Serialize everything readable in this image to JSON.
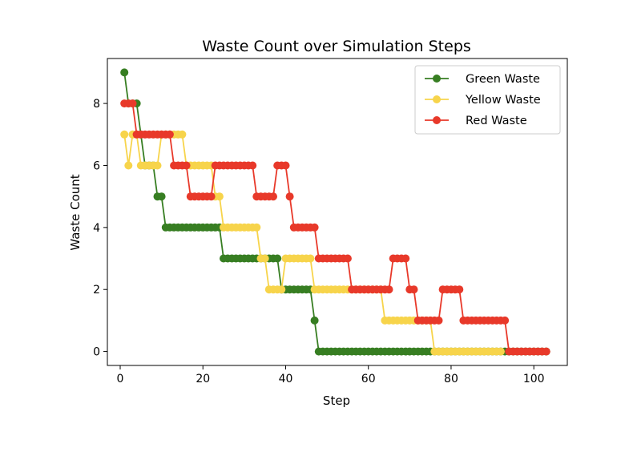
{
  "chart_data": {
    "type": "line",
    "title": "Waste Count over Simulation Steps",
    "xlabel": "Step",
    "ylabel": "Waste Count",
    "xlim": [
      -3.1,
      108.1
    ],
    "ylim": [
      -0.45,
      9.45
    ],
    "xticks": [
      0,
      20,
      40,
      60,
      80,
      100
    ],
    "yticks": [
      0,
      2,
      4,
      6,
      8
    ],
    "legend_position": "upper right",
    "grid": false,
    "series": [
      {
        "name": "Green Waste",
        "color": "#377e22",
        "segments": [
          [
            1,
            1,
            9
          ],
          [
            2,
            4,
            8
          ],
          [
            5,
            5,
            7
          ],
          [
            6,
            8,
            6
          ],
          [
            9,
            10,
            5
          ],
          [
            11,
            24,
            4
          ],
          [
            25,
            38,
            3
          ],
          [
            39,
            46,
            2
          ],
          [
            47,
            47,
            1
          ],
          [
            48,
            103,
            0
          ]
        ]
      },
      {
        "name": "Yellow Waste",
        "color": "#f7d44b",
        "segments": [
          [
            1,
            1,
            7
          ],
          [
            2,
            2,
            6
          ],
          [
            3,
            4,
            7
          ],
          [
            5,
            9,
            6
          ],
          [
            10,
            15,
            7
          ],
          [
            16,
            22,
            6
          ],
          [
            23,
            24,
            5
          ],
          [
            25,
            33,
            4
          ],
          [
            34,
            35,
            3
          ],
          [
            36,
            39,
            2
          ],
          [
            40,
            46,
            3
          ],
          [
            47,
            63,
            2
          ],
          [
            64,
            69,
            1
          ],
          [
            70,
            75,
            1
          ],
          [
            76,
            92,
            0
          ]
        ]
      },
      {
        "name": "Red Waste",
        "color": "#e8392a",
        "segments": [
          [
            1,
            3,
            8
          ],
          [
            4,
            12,
            7
          ],
          [
            13,
            16,
            6
          ],
          [
            17,
            22,
            5
          ],
          [
            23,
            32,
            6
          ],
          [
            33,
            37,
            5
          ],
          [
            38,
            40,
            6
          ],
          [
            41,
            41,
            5
          ],
          [
            42,
            47,
            4
          ],
          [
            48,
            55,
            3
          ],
          [
            56,
            65,
            2
          ],
          [
            66,
            69,
            3
          ],
          [
            70,
            71,
            2
          ],
          [
            72,
            77,
            1
          ],
          [
            78,
            82,
            2
          ],
          [
            83,
            93,
            1
          ],
          [
            94,
            103,
            0
          ]
        ]
      }
    ]
  }
}
